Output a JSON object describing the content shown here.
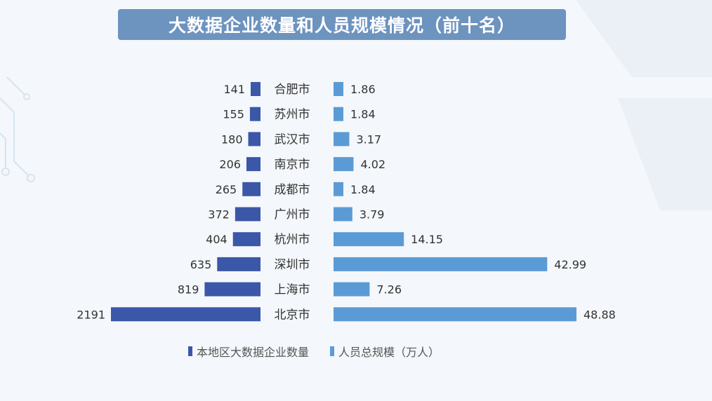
{
  "title": "大数据企业数量和人员规模情况（前十名）",
  "colors": {
    "enterprise": "#3b57a8",
    "personnel": "#5b9bd5",
    "title_bg": "#6d93bf"
  },
  "legend": {
    "enterprise": "本地区大数据企业数量",
    "personnel": "人员总规模（万人）"
  },
  "chart_data": {
    "type": "bar",
    "title": "大数据企业数量和人员规模情况（前十名）",
    "categories": [
      "合肥市",
      "苏州市",
      "武汉市",
      "南京市",
      "成都市",
      "广州市",
      "杭州市",
      "深圳市",
      "上海市",
      "北京市"
    ],
    "series": [
      {
        "name": "本地区大数据企业数量",
        "values": [
          141,
          155,
          180,
          206,
          265,
          372,
          404,
          635,
          819,
          2191
        ],
        "labels": [
          "141",
          "155",
          "180",
          "206",
          "265",
          "372",
          "404",
          "635",
          "819",
          "2191"
        ]
      },
      {
        "name": "人员总规模（万人）",
        "values": [
          1.86,
          1.84,
          3.17,
          4.02,
          1.84,
          3.79,
          14.15,
          42.99,
          7.26,
          48.88
        ],
        "labels": [
          "1.86",
          "1.84",
          "3.17",
          "4.02",
          "1.84",
          "3.79",
          "14.15",
          "42.99",
          "7.26",
          "48.88"
        ]
      }
    ],
    "orientation": "horizontal-butterfly",
    "grid": false,
    "legend_position": "bottom"
  }
}
